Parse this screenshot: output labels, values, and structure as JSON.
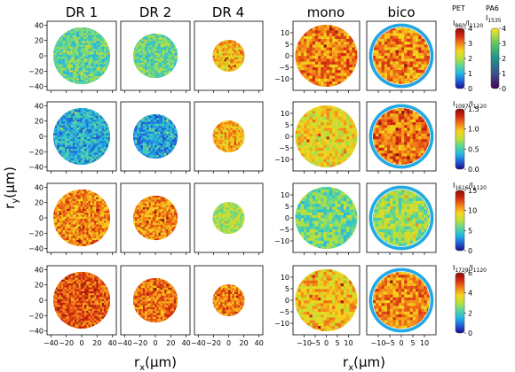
{
  "chart_data": {
    "type": "heatmap",
    "columns": [
      "DR 1",
      "DR 2",
      "DR 4",
      "mono",
      "bico"
    ],
    "xlabel_main": "r",
    "xlabel_sub": "x",
    "xlabel_unit": "(μm)",
    "ylabel_main": "r",
    "ylabel_sub": "y",
    "ylabel_unit": "(μm)",
    "left_xticks": [
      "−40",
      "−20",
      "0",
      "20",
      "40"
    ],
    "left_xtick_values": [
      -40,
      -20,
      0,
      20,
      40
    ],
    "left_yticks": [
      "40",
      "20",
      "0",
      "−20",
      "−40"
    ],
    "left_ytick_values": [
      40,
      20,
      0,
      -20,
      -40
    ],
    "left_range": [
      -45,
      45
    ],
    "right_xticks": [
      "−10",
      "−5",
      "0",
      "5",
      "10"
    ],
    "right_xtick_values": [
      -10,
      -5,
      0,
      5,
      10
    ],
    "right_yticks": [
      "10",
      "5",
      "0",
      "−5",
      "−10"
    ],
    "right_ytick_values": [
      10,
      5,
      0,
      -5,
      -10
    ],
    "right_range": [
      -15,
      15
    ],
    "fiber_radius_um": {
      "DR 1": 37,
      "DR 2": 29,
      "DR 4": 21,
      "mono": 14,
      "bico": 14
    },
    "bico_sheath_inner_radius_um": 12.3,
    "colormaps": {
      "PET": [
        "#1a0d8c",
        "#1f5fd6",
        "#24b6e6",
        "#58d69a",
        "#b8e03a",
        "#f6d61c",
        "#f48018",
        "#d42a12",
        "#8a0c0c"
      ],
      "PA6": [
        "#440154",
        "#3b528b",
        "#21908d",
        "#5dc863",
        "#fde725"
      ]
    },
    "cb_headers": {
      "pet_label": "PET",
      "pa6_label": "PA6",
      "pa6_ratio": "I",
      "pa6_ratio_sub": "1535"
    },
    "rows": [
      {
        "ratio_main": "I",
        "ratio_num_sub": "860",
        "ratio_mid": "/I",
        "ratio_den_sub": "1120",
        "cb_ticks": [
          "4",
          "3",
          "2",
          "1",
          "0"
        ],
        "cb_tick_values": [
          4,
          3,
          2,
          1,
          0
        ],
        "cb_range": [
          0,
          4
        ],
        "pa6_ticks": [
          "4",
          "3",
          "2",
          "1",
          "0"
        ],
        "pa6_tick_values": [
          4,
          3,
          2,
          1,
          0
        ],
        "pa6_range": [
          0,
          4
        ],
        "mean_values": {
          "DR 1": 1.5,
          "DR 2": 1.55,
          "DR 4": 2.6,
          "mono": 3.0,
          "bico": 2.95
        },
        "bico_sheath_value": 0.9
      },
      {
        "ratio_main": "I",
        "ratio_num_sub": "1097",
        "ratio_mid": "/I",
        "ratio_den_sub": "1120",
        "cb_ticks": [
          "1.5",
          "1.0",
          "0.5",
          "0.0"
        ],
        "cb_tick_values": [
          1.5,
          1.0,
          0.5,
          0.0
        ],
        "cb_range": [
          0,
          1.5
        ],
        "mean_values": {
          "DR 1": 0.38,
          "DR 2": 0.35,
          "DR 4": 1.0,
          "mono": 0.9,
          "bico": 1.15
        },
        "bico_sheath_value": 0.35
      },
      {
        "ratio_main": "I",
        "ratio_num_sub": "1616",
        "ratio_mid": "/I",
        "ratio_den_sub": "1120",
        "cb_ticks": [
          "15",
          "10",
          "5",
          "0"
        ],
        "cb_tick_values": [
          15,
          10,
          5,
          0
        ],
        "cb_range": [
          0,
          15
        ],
        "mean_values": {
          "DR 1": 11.0,
          "DR 2": 11.0,
          "DR 4": 7.2,
          "mono": 6.0,
          "bico": 6.8
        },
        "bico_sheath_value": 3.5
      },
      {
        "ratio_main": "I",
        "ratio_num_sub": "1729",
        "ratio_mid": "/I",
        "ratio_den_sub": "1120",
        "cb_ticks": [
          "6",
          "4",
          "2",
          "0"
        ],
        "cb_tick_values": [
          6,
          4,
          2,
          0
        ],
        "cb_range": [
          0,
          6
        ],
        "mean_values": {
          "DR 1": 4.9,
          "DR 2": 4.6,
          "DR 4": 4.5,
          "mono": 3.9,
          "bico": 4.4
        },
        "bico_sheath_value": 1.4
      }
    ]
  }
}
